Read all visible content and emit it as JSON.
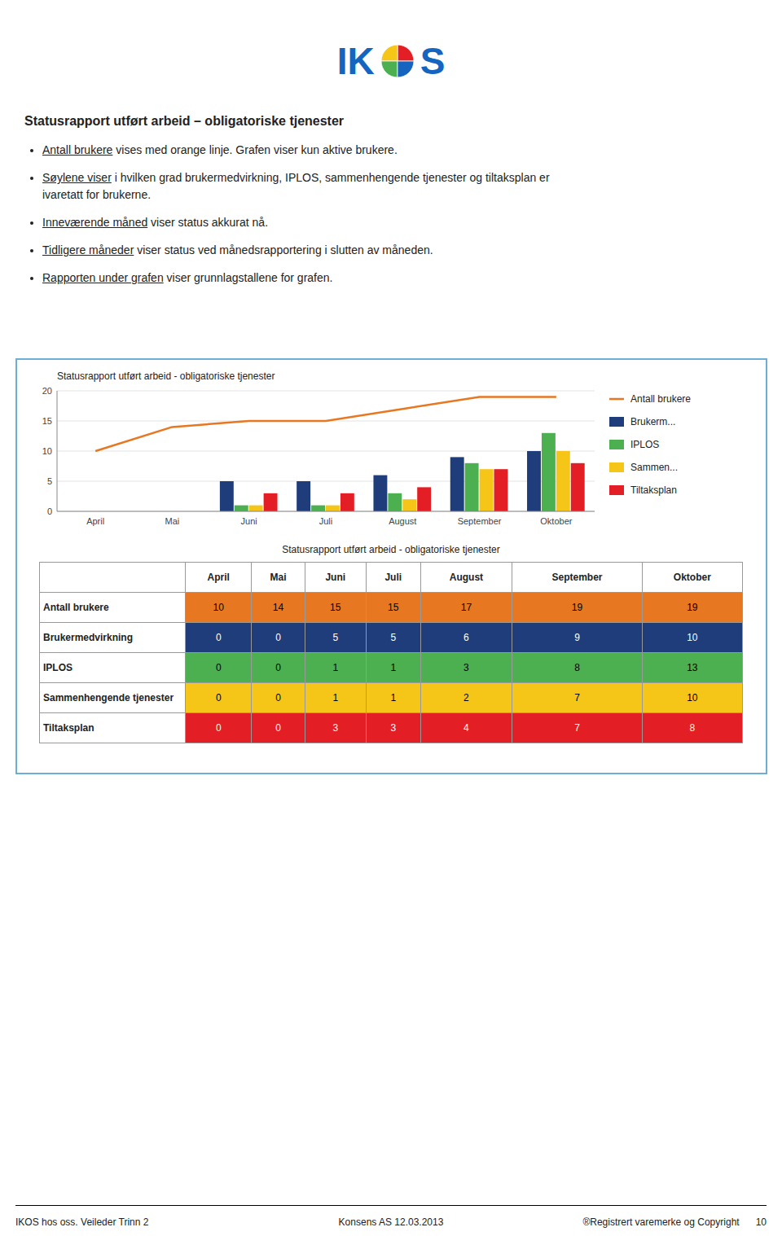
{
  "chart_data": {
    "type": "bar",
    "title": "Statusrapport utført arbeid - obligatoriske tjenester",
    "categories": [
      "April",
      "Mai",
      "Juni",
      "Juli",
      "August",
      "September",
      "Oktober"
    ],
    "series": [
      {
        "name": "Antall brukere",
        "type": "line",
        "color": "#E87722",
        "values": [
          10,
          14,
          15,
          15,
          17,
          19,
          19
        ]
      },
      {
        "name": "Brukerm...",
        "type": "bar",
        "color": "#1F3D7A",
        "values": [
          0,
          0,
          5,
          5,
          6,
          9,
          10
        ]
      },
      {
        "name": "IPLOS",
        "type": "bar",
        "color": "#4CAF50",
        "values": [
          0,
          0,
          1,
          1,
          3,
          8,
          13
        ]
      },
      {
        "name": "Sammen...",
        "type": "bar",
        "color": "#F5C518",
        "values": [
          0,
          0,
          1,
          1,
          2,
          7,
          10
        ]
      },
      {
        "name": "Tiltaksplan",
        "type": "bar",
        "color": "#E31E24",
        "values": [
          0,
          0,
          3,
          3,
          4,
          7,
          8
        ]
      }
    ],
    "ylim": [
      0,
      20
    ],
    "yticks": [
      0,
      5,
      10,
      15,
      20
    ],
    "grid": true,
    "legend": "right"
  },
  "page": {
    "logo": [
      "IK",
      "S"
    ],
    "title": "Statusrapport utført arbeid – obligatoriske tjenester",
    "bullets": [
      [
        "Antall brukere",
        " vises med orange linje. Grafen viser kun aktive brukere."
      ],
      [
        "Søylene viser",
        " i hvilken grad brukermedvirkning, IPLOS, sammenhengende tjenester og tiltaksplan er\nivaretatt for brukerne."
      ],
      [
        "Inneværende måned",
        " viser status akkurat nå."
      ],
      [
        "Tidligere måneder",
        " viser status ved månedsrapportering i slutten av måneden."
      ],
      [
        "Rapporten under grafen",
        " viser grunnlagstallene for grafen."
      ]
    ],
    "table_title": "Statusrapport utført arbeid - obligatoriske tjenester",
    "table_row_labels": [
      "Antall brukere",
      "Brukermedvirkning",
      "IPLOS",
      "Sammenhengende tjenester",
      "Tiltaksplan"
    ],
    "box_border_color": "#6baed6",
    "footer": [
      "IKOS hos oss. Veileder Trinn 2",
      "Konsens AS 12.03.2013",
      "®Registrert varemerke og Copyright      10"
    ]
  }
}
